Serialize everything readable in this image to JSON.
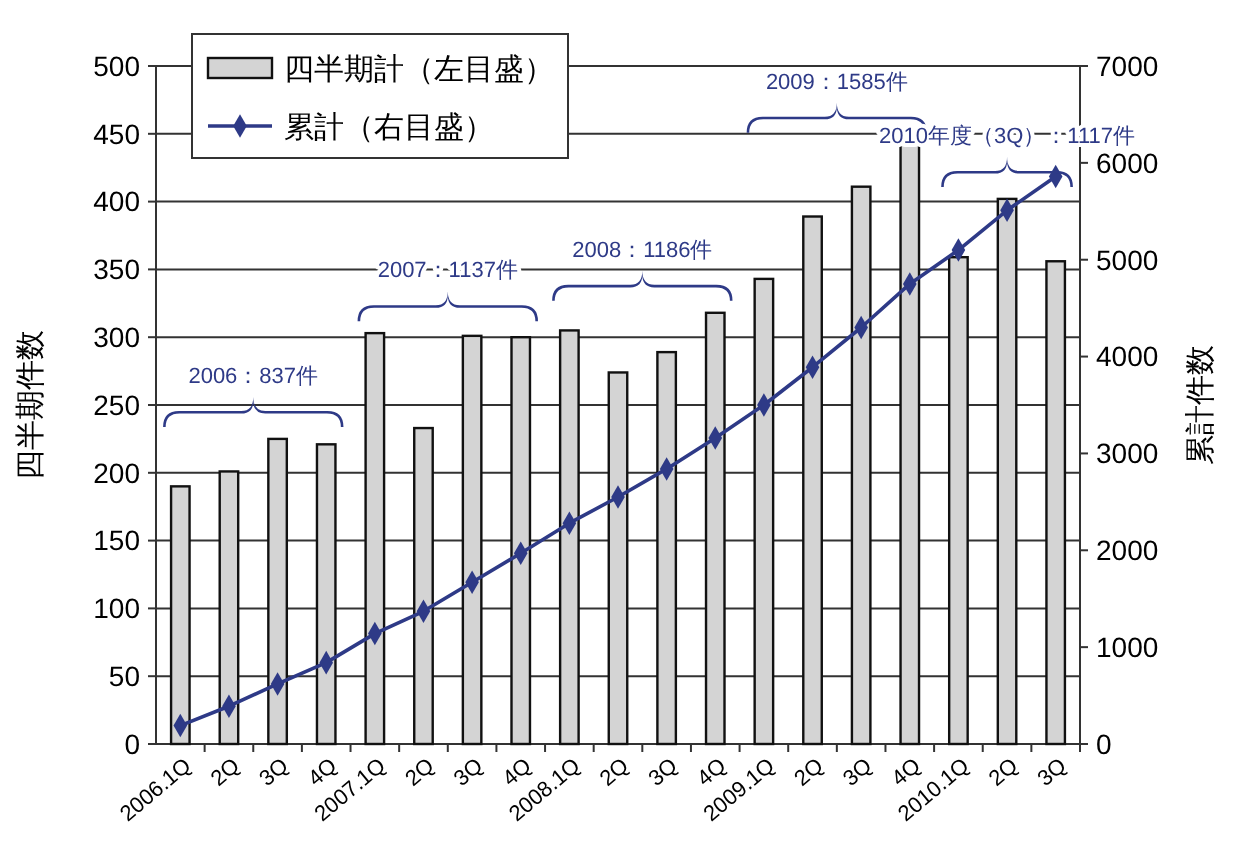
{
  "chart_data": {
    "type": "bar",
    "categories": [
      "2006.1Q",
      "2Q",
      "3Q",
      "4Q",
      "2007.1Q",
      "2Q",
      "3Q",
      "4Q",
      "2008.1Q",
      "2Q",
      "3Q",
      "4Q",
      "2009.1Q",
      "2Q",
      "3Q",
      "4Q",
      "2010.1Q",
      "2Q",
      "3Q"
    ],
    "series": [
      {
        "name": "四半期計（左目盛）",
        "color": "#d4d4d4",
        "values": [
          190,
          201,
          225,
          221,
          303,
          233,
          301,
          300,
          305,
          274,
          289,
          318,
          343,
          389,
          411,
          442,
          359,
          402,
          356
        ]
      },
      {
        "name": "累計（右目盛）",
        "type": "line",
        "axis": "y2",
        "color": "#2e3a87",
        "marker": "diamond",
        "values": [
          190,
          390,
          620,
          840,
          1140,
          1370,
          1670,
          1970,
          2280,
          2550,
          2840,
          3160,
          3500,
          3890,
          4300,
          4750,
          5100,
          5510,
          5860
        ]
      }
    ],
    "ylabel": "四半期件数",
    "y2label": "累計件数",
    "ylim": [
      0,
      500
    ],
    "yticks": [
      0,
      50,
      100,
      150,
      200,
      250,
      300,
      350,
      400,
      450,
      500
    ],
    "y2lim": [
      0,
      7000
    ],
    "y2ticks": [
      0,
      1000,
      2000,
      3000,
      4000,
      5000,
      6000,
      7000
    ],
    "grid": "y",
    "legend": "top left",
    "annotations": [
      "2006：837件",
      "2007：1137件",
      "2008：1186件",
      "2009：1585件",
      "2010年度（3Q）：1117件"
    ]
  }
}
